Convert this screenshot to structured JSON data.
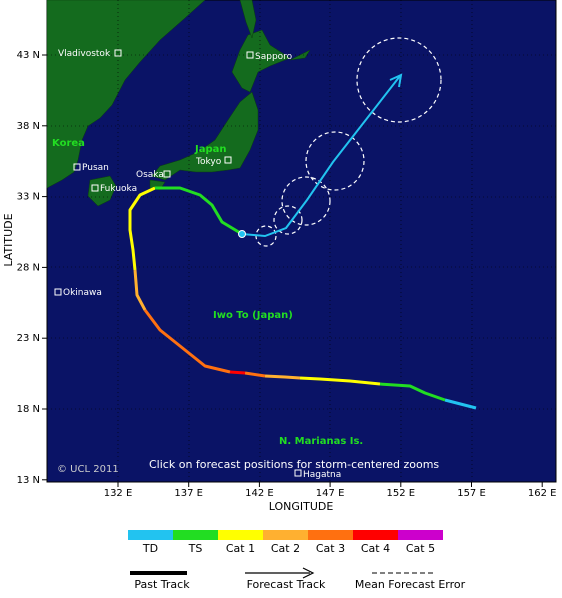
{
  "map": {
    "x_axis_label": "LONGITUDE",
    "y_axis_label": "LATITUDE",
    "lat_ticks": [
      "43 N",
      "38 N",
      "33 N",
      "28 N",
      "23 N",
      "18 N",
      "13 N"
    ],
    "lon_ticks": [
      "132 E",
      "137 E",
      "142 E",
      "147 E",
      "152 E",
      "157 E",
      "162 E"
    ],
    "places": [
      "Vladivostok",
      "Sapporo",
      "Tokyo",
      "Pusan",
      "Osaka",
      "Fukuoka",
      "Okinawa",
      "Hagatna"
    ],
    "regions": [
      "Korea",
      "Japan",
      "Iwo To (Japan)",
      "N. Marianas Is."
    ],
    "copyright": "© UCL 2011",
    "instruction": "Click on forecast positions for storm-centered zooms"
  },
  "legend": {
    "categories": [
      "TD",
      "TS",
      "Cat 1",
      "Cat 2",
      "Cat 3",
      "Cat 4",
      "Cat 5"
    ],
    "keys": [
      "Past Track",
      "Forecast Track",
      "Mean Forecast Error"
    ]
  }
}
